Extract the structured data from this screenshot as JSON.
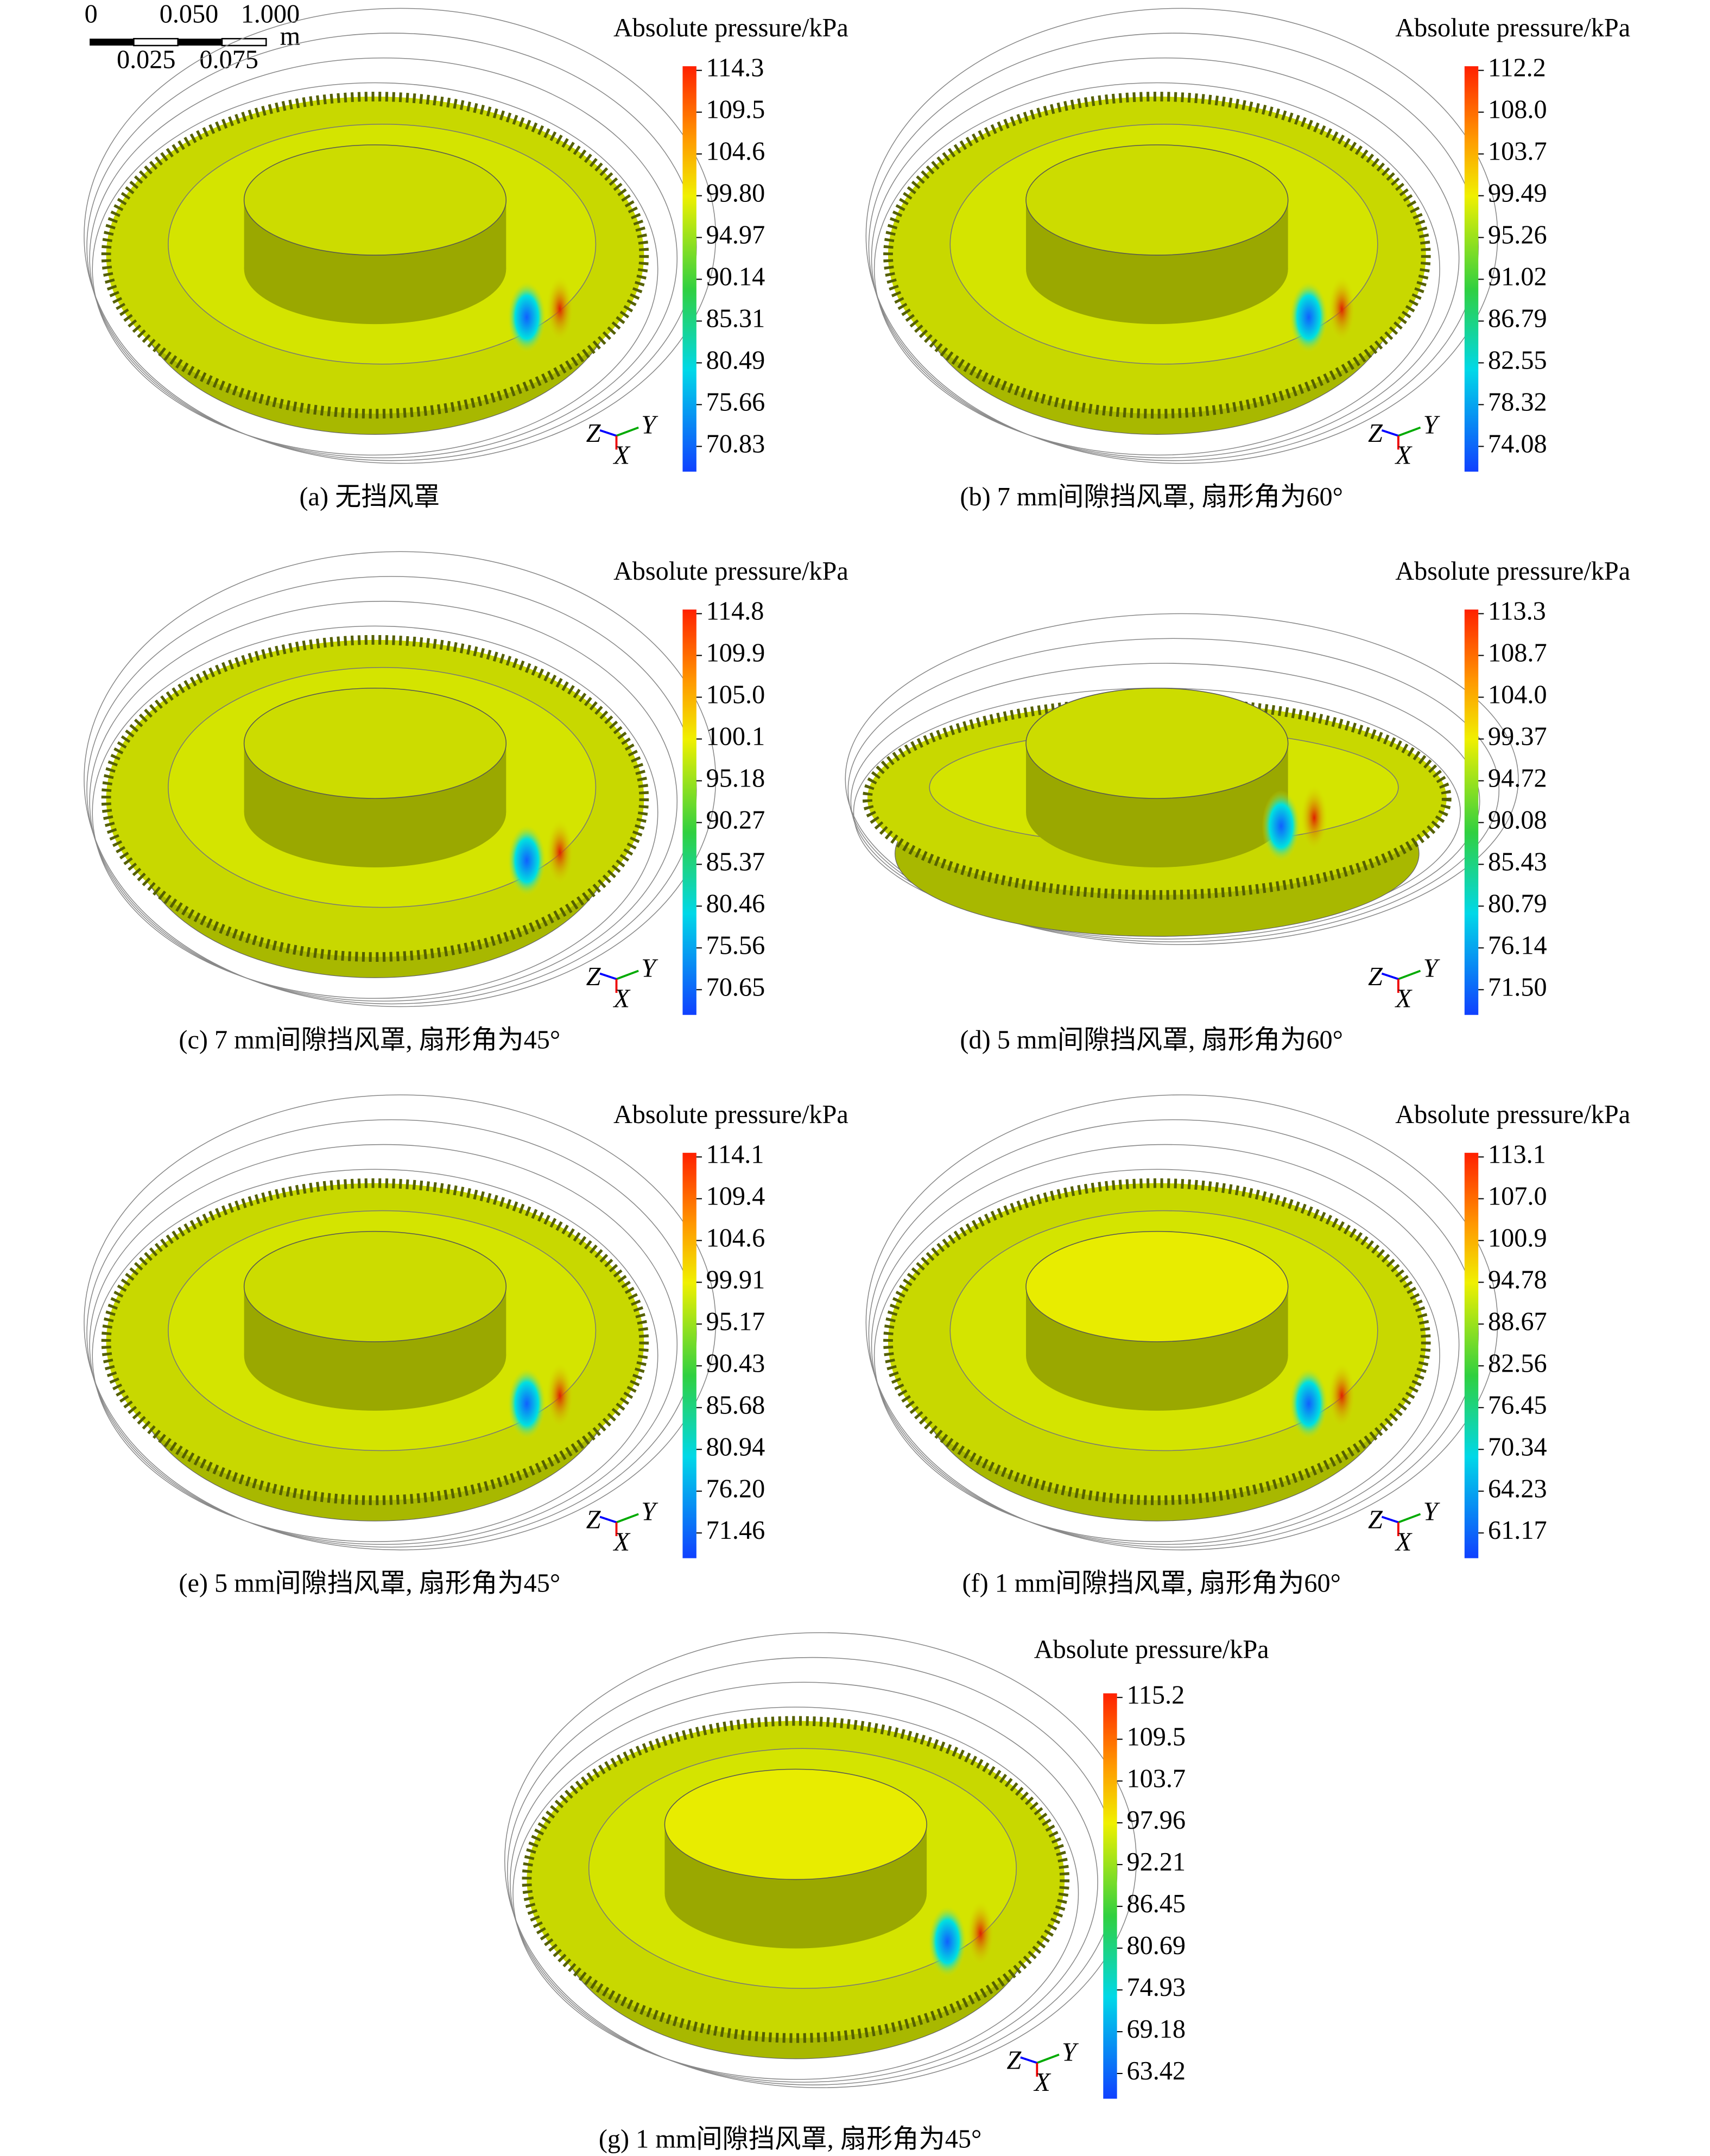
{
  "scale_bar": {
    "labels_top": [
      "0",
      "0.050",
      "1.000"
    ],
    "labels_bottom": [
      "0.025",
      "0.075"
    ],
    "unit": "m"
  },
  "panels": [
    {
      "caption": "(a) 无挡风罩",
      "legend_title": "Absolute pressure/kPa",
      "colorbar_labels": [
        "114.3",
        "109.5",
        "104.6",
        "99.80",
        "94.97",
        "90.14",
        "85.31",
        "80.49",
        "75.66",
        "70.83"
      ],
      "triad": [
        "Z",
        "Y",
        "X"
      ]
    },
    {
      "caption": "(b) 7 mm间隙挡风罩, 扇形角为60°",
      "legend_title": "Absolute pressure/kPa",
      "colorbar_labels": [
        "112.2",
        "108.0",
        "103.7",
        "99.49",
        "95.26",
        "91.02",
        "86.79",
        "82.55",
        "78.32",
        "74.08"
      ],
      "triad": [
        "Z",
        "Y",
        "X"
      ]
    },
    {
      "caption": "(c) 7 mm间隙挡风罩, 扇形角为45°",
      "legend_title": "Absolute pressure/kPa",
      "colorbar_labels": [
        "114.8",
        "109.9",
        "105.0",
        "100.1",
        "95.18",
        "90.27",
        "85.37",
        "80.46",
        "75.56",
        "70.65"
      ],
      "triad": [
        "Z",
        "Y",
        "X"
      ]
    },
    {
      "caption": "(d) 5 mm间隙挡风罩, 扇形角为60°",
      "legend_title": "Absolute pressure/kPa",
      "colorbar_labels": [
        "113.3",
        "108.7",
        "104.0",
        "99.37",
        "94.72",
        "90.08",
        "85.43",
        "80.79",
        "76.14",
        "71.50"
      ],
      "triad": [
        "Z",
        "Y",
        "X"
      ]
    },
    {
      "caption": "(e) 5 mm间隙挡风罩, 扇形角为45°",
      "legend_title": "Absolute pressure/kPa",
      "colorbar_labels": [
        "114.1",
        "109.4",
        "104.6",
        "99.91",
        "95.17",
        "90.43",
        "85.68",
        "80.94",
        "76.20",
        "71.46"
      ],
      "triad": [
        "Z",
        "Y",
        "X"
      ]
    },
    {
      "caption": "(f) 1 mm间隙挡风罩, 扇形角为60°",
      "legend_title": "Absolute pressure/kPa",
      "colorbar_labels": [
        "113.1",
        "107.0",
        "100.9",
        "94.78",
        "88.67",
        "82.56",
        "76.45",
        "70.34",
        "64.23",
        "61.17"
      ],
      "triad": [
        "Z",
        "Y",
        "X"
      ]
    },
    {
      "caption": "(g) 1 mm间隙挡风罩, 扇形角为45°",
      "legend_title": "Absolute pressure/kPa",
      "colorbar_labels": [
        "115.2",
        "109.5",
        "103.7",
        "97.96",
        "92.21",
        "86.45",
        "80.69",
        "74.93",
        "69.18",
        "63.42"
      ],
      "triad": [
        "Z",
        "Y",
        "X"
      ]
    }
  ]
}
